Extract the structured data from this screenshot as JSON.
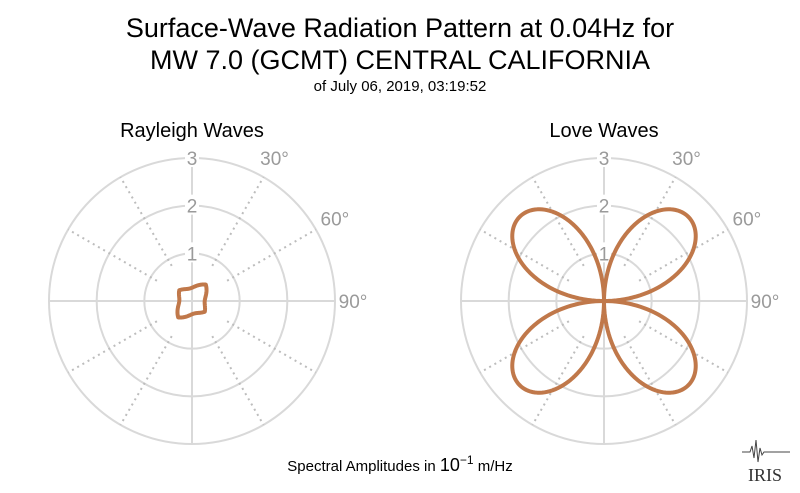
{
  "header": {
    "title_line1": "Surface-Wave Radiation Pattern at 0.04Hz for",
    "title_line2": "MW 7.0 (GCMT) CENTRAL CALIFORNIA",
    "subtitle": "of July 06, 2019, 03:19:52"
  },
  "footer": {
    "label_prefix": "Spectral Amplitudes in ",
    "label_base": "10",
    "label_exp": "−1",
    "label_unit": " m/Hz"
  },
  "logo": {
    "text": "IRIS"
  },
  "colors": {
    "pattern": "#c0784a",
    "grid_solid": "#d9d9d9",
    "grid_dotted": "#bdbdbd",
    "tick_text": "#9a9a9a"
  },
  "chart_data": [
    {
      "type": "polar",
      "title": "Rayleigh Waves",
      "r_ticks": [
        "1",
        "2",
        "3"
      ],
      "rlim": [
        0,
        3
      ],
      "angle_labels": [
        "30°",
        "60°",
        "90°"
      ],
      "theta_zero": "north",
      "theta_direction": "clockwise",
      "spoke_step_deg": 30,
      "grid": true,
      "pattern": {
        "kind": "rayleigh",
        "lobe_amplitudes": [
          0.45,
          0.35
        ],
        "lobe_azimuth_deg": 40
      }
    },
    {
      "type": "polar",
      "title": "Love Waves",
      "r_ticks": [
        "1",
        "2",
        "3"
      ],
      "rlim": [
        0,
        3
      ],
      "angle_labels": [
        "30°",
        "60°",
        "90°"
      ],
      "theta_zero": "north",
      "theta_direction": "clockwise",
      "spoke_step_deg": 30,
      "grid": true,
      "pattern": {
        "kind": "four-lobe",
        "max_amplitude": 2.5,
        "lobe_azimuths_deg": [
          45,
          135,
          225,
          315
        ]
      }
    }
  ]
}
